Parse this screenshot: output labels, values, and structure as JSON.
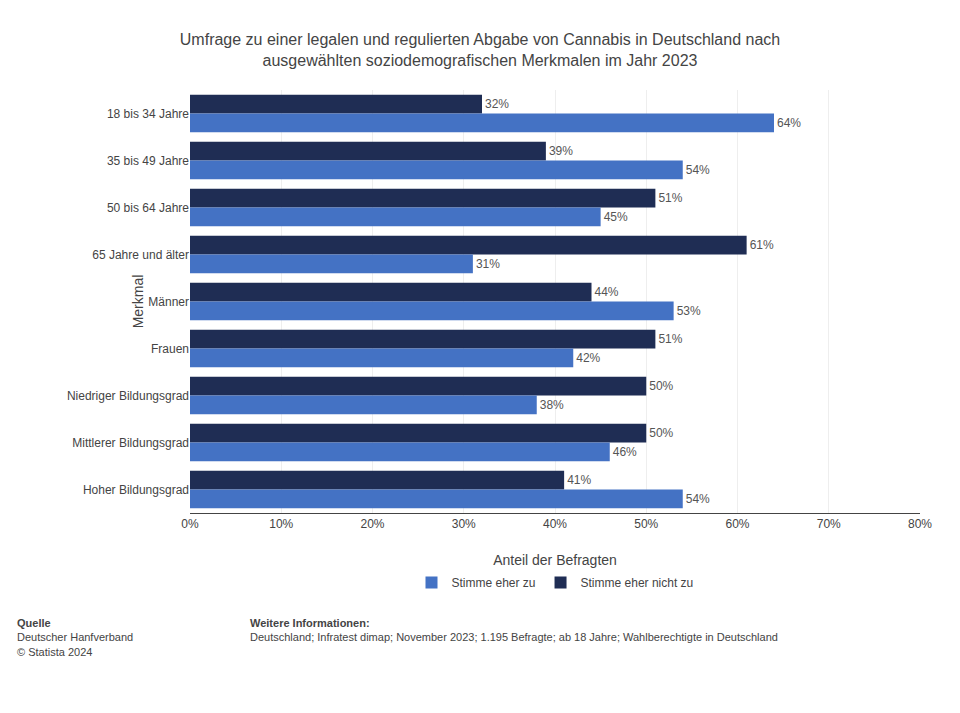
{
  "chart_data": {
    "type": "bar",
    "orientation": "horizontal",
    "title": "Umfrage zu einer legalen und regulierten Abgabe von Cannabis in Deutschland nach\nausgewählten soziodemografischen Merkmalen im Jahr 2023",
    "x_label": "Anteil der Befragten",
    "y_label": "Merkmal",
    "categories": [
      "18 bis 34 Jahre",
      "35 bis 49 Jahre",
      "50 bis 64 Jahre",
      "65 Jahre und älter",
      "Männer",
      "Frauen",
      "Niedriger Bildungsgrad",
      "Mittlerer Bildungsgrad",
      "Hoher Bildungsgrad"
    ],
    "series": [
      {
        "name": "Stimme eher nicht zu",
        "color": "#1F2D54",
        "values": [
          32,
          39,
          51,
          61,
          44,
          51,
          50,
          50,
          41
        ],
        "value_labels": [
          "32%",
          "39%",
          "51%",
          "61%",
          "44%",
          "51%",
          "50%",
          "50%",
          "41%"
        ]
      },
      {
        "name": "Stimme eher zu",
        "color": "#4472C4",
        "values": [
          64,
          54,
          45,
          31,
          53,
          42,
          38,
          46,
          54
        ],
        "value_labels": [
          "64%",
          "54%",
          "45%",
          "31%",
          "53%",
          "42%",
          "38%",
          "46%",
          "54%"
        ]
      }
    ],
    "xlim": [
      0,
      80
    ],
    "xticks": [
      {
        "value": 0,
        "label": "0%"
      },
      {
        "value": 10,
        "label": "10%"
      },
      {
        "value": 20,
        "label": "20%"
      },
      {
        "value": 30,
        "label": "30%"
      },
      {
        "value": 40,
        "label": "40%"
      },
      {
        "value": 50,
        "label": "50%"
      },
      {
        "value": 60,
        "label": "60%"
      },
      {
        "value": 70,
        "label": "70%"
      },
      {
        "value": 80,
        "label": "80%"
      }
    ],
    "grid": true,
    "data_labels": true,
    "legend": "bottom",
    "annotations": [
      {
        "title": "Quelle",
        "text": "Deutscher Hanfverband\n© Statista 2024"
      },
      {
        "title": "Weitere Informationen:",
        "text": "Deutschland; Infratest dimap; November 2023; 1.195 Befragte; ab 18 Jahre; Wahlberechtigte in Deutschland"
      }
    ]
  }
}
